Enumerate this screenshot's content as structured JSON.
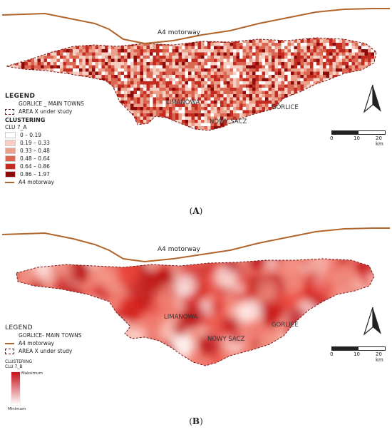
{
  "panel_a": {
    "caption": "A",
    "motorway_label": "A4 motorway",
    "towns": [
      "LIMANOWA",
      "NOWY SACZ",
      "GORLICE"
    ],
    "legend": {
      "title": "LEGEND",
      "towns_label": "GORLICE _ MAIN TOWNS",
      "area_label": "AREA  X under study",
      "clustering_label": "CLUSTERING",
      "layer_label": "CLU 7_A",
      "classes": [
        {
          "label": "0 – 0.19",
          "color": "#ffffff"
        },
        {
          "label": "0.19 – 0.33",
          "color": "#f6cfc2"
        },
        {
          "label": "0.33 – 0.48",
          "color": "#eba08c"
        },
        {
          "label": "0.48 – 0.64",
          "color": "#db6652"
        },
        {
          "label": "0.64 – 0.86",
          "color": "#c32b20"
        },
        {
          "label": "0.86 – 1.97",
          "color": "#8b0a0a"
        }
      ],
      "motorway_label": "A4 motorway"
    },
    "scale": {
      "labels": [
        "0",
        "10",
        "20 km"
      ]
    }
  },
  "panel_b": {
    "caption": "B",
    "motorway_label": "A4 motorway",
    "towns": [
      "LIMANOWA",
      "NOWY SACZ",
      "GORLICE"
    ],
    "legend": {
      "title": "LEGEND",
      "towns_label": "GORLICE- MAIN TOWNS",
      "motorway_label": "A4 motorway",
      "area_label": "AREA X under study",
      "clustering_label": "CLUSTERING",
      "layer_label": "CLU 7_B",
      "max_label": "Maksimum",
      "min_label": "Minimum"
    },
    "scale": {
      "labels": [
        "0",
        "10",
        "20 km"
      ]
    }
  },
  "colors": {
    "motorway": "#b0652c",
    "boundary": "#7a1a1a",
    "heat_max": "#c4101a"
  }
}
